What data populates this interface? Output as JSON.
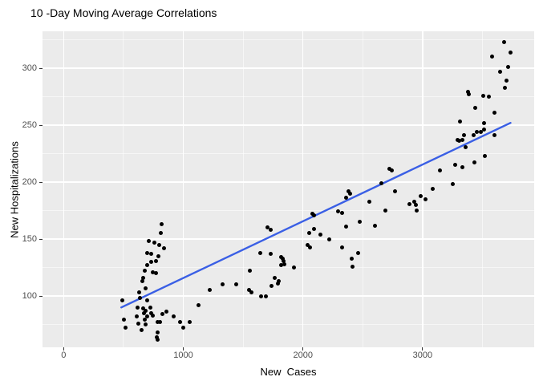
{
  "chart": {
    "title": "10 -Day Moving Average Correlations",
    "x_axis_label": "New  Cases",
    "y_axis_label": "New Hospitalizations"
  },
  "chart_data": {
    "type": "scatter",
    "title": "10 -Day Moving Average Correlations",
    "xlabel": "New  Cases",
    "ylabel": "New Hospitalizations",
    "xlim": [
      -176,
      3932
    ],
    "ylim": [
      55,
      332.4
    ],
    "x_major_ticks": [
      0,
      1000,
      2000,
      3000
    ],
    "x_minor_ticks": [
      500,
      1500,
      2500,
      3500
    ],
    "y_major_ticks": [
      100,
      150,
      200,
      250,
      300
    ],
    "y_minor_ticks": [
      75,
      125,
      175,
      225,
      275,
      325
    ],
    "grid": "on",
    "legend": "none",
    "panel_background": "#EBEBEB",
    "grid_color": "#FFFFFF",
    "point_color": "#000000",
    "trend_line": {
      "type": "linear",
      "x1": 482,
      "y1": 90,
      "x2": 3734,
      "y2": 252,
      "color": "#3A5FE5"
    },
    "points": [
      [
        489,
        96
      ],
      [
        505,
        79
      ],
      [
        520,
        72
      ],
      [
        614,
        82
      ],
      [
        616,
        90
      ],
      [
        623,
        76
      ],
      [
        630,
        103
      ],
      [
        636,
        98
      ],
      [
        650,
        70
      ],
      [
        656,
        113
      ],
      [
        663,
        116
      ],
      [
        665,
        89
      ],
      [
        672,
        85
      ],
      [
        677,
        122
      ],
      [
        677,
        79
      ],
      [
        683,
        107
      ],
      [
        688,
        87
      ],
      [
        688,
        75
      ],
      [
        697,
        138
      ],
      [
        697,
        127
      ],
      [
        697,
        96
      ],
      [
        699,
        82
      ],
      [
        710,
        148
      ],
      [
        723,
        90
      ],
      [
        730,
        137
      ],
      [
        730,
        130
      ],
      [
        732,
        85
      ],
      [
        743,
        121
      ],
      [
        743,
        83
      ],
      [
        757,
        147
      ],
      [
        770,
        131
      ],
      [
        770,
        120
      ],
      [
        780,
        64
      ],
      [
        784,
        77
      ],
      [
        784,
        68
      ],
      [
        789,
        62
      ],
      [
        790,
        135
      ],
      [
        797,
        145
      ],
      [
        806,
        77
      ],
      [
        810,
        155
      ],
      [
        817,
        163
      ],
      [
        825,
        84
      ],
      [
        837,
        142
      ],
      [
        861,
        86
      ],
      [
        922,
        82
      ],
      [
        975,
        77
      ],
      [
        1000,
        72
      ],
      [
        1051,
        77
      ],
      [
        1125,
        92
      ],
      [
        1219,
        105
      ],
      [
        1326,
        110
      ],
      [
        1440,
        110
      ],
      [
        1547,
        105
      ],
      [
        1554,
        122
      ],
      [
        1567,
        103
      ],
      [
        1641,
        138
      ],
      [
        1648,
        100
      ],
      [
        1688,
        100
      ],
      [
        1705,
        160
      ],
      [
        1730,
        158
      ],
      [
        1728,
        137
      ],
      [
        1735,
        109
      ],
      [
        1762,
        116
      ],
      [
        1788,
        111
      ],
      [
        1795,
        113
      ],
      [
        1815,
        134
      ],
      [
        1815,
        127
      ],
      [
        1833,
        133
      ],
      [
        1835,
        131
      ],
      [
        1842,
        128
      ],
      [
        1922,
        125
      ],
      [
        2036,
        145
      ],
      [
        2056,
        143
      ],
      [
        2049,
        155
      ],
      [
        2078,
        172
      ],
      [
        2094,
        171
      ],
      [
        2094,
        159
      ],
      [
        2145,
        154
      ],
      [
        2221,
        150
      ],
      [
        2295,
        174
      ],
      [
        2324,
        143
      ],
      [
        2329,
        173
      ],
      [
        2362,
        161
      ],
      [
        2362,
        186
      ],
      [
        2378,
        192
      ],
      [
        2391,
        190
      ],
      [
        2406,
        133
      ],
      [
        2413,
        126
      ],
      [
        2462,
        138
      ],
      [
        2473,
        165
      ],
      [
        2552,
        183
      ],
      [
        2601,
        162
      ],
      [
        2657,
        199
      ],
      [
        2692,
        175
      ],
      [
        2720,
        212
      ],
      [
        2740,
        210
      ],
      [
        2771,
        192
      ],
      [
        2891,
        181
      ],
      [
        2927,
        183
      ],
      [
        2942,
        180
      ],
      [
        2949,
        175
      ],
      [
        2987,
        188
      ],
      [
        3025,
        185
      ],
      [
        3083,
        194
      ],
      [
        3143,
        210
      ],
      [
        3255,
        198
      ],
      [
        3271,
        215
      ],
      [
        3289,
        237
      ],
      [
        3307,
        236
      ],
      [
        3311,
        253
      ],
      [
        3329,
        237
      ],
      [
        3334,
        213
      ],
      [
        3344,
        241
      ],
      [
        3360,
        231
      ],
      [
        3377,
        279
      ],
      [
        3383,
        277
      ],
      [
        3427,
        241
      ],
      [
        3434,
        217
      ],
      [
        3440,
        265
      ],
      [
        3456,
        244
      ],
      [
        3489,
        244
      ],
      [
        3505,
        276
      ],
      [
        3510,
        246
      ],
      [
        3516,
        252
      ],
      [
        3518,
        223
      ],
      [
        3552,
        275
      ],
      [
        3583,
        310
      ],
      [
        3597,
        261
      ],
      [
        3597,
        241
      ],
      [
        3650,
        297
      ],
      [
        3683,
        323
      ],
      [
        3686,
        283
      ],
      [
        3702,
        289
      ],
      [
        3717,
        301
      ],
      [
        3735,
        314
      ]
    ]
  }
}
